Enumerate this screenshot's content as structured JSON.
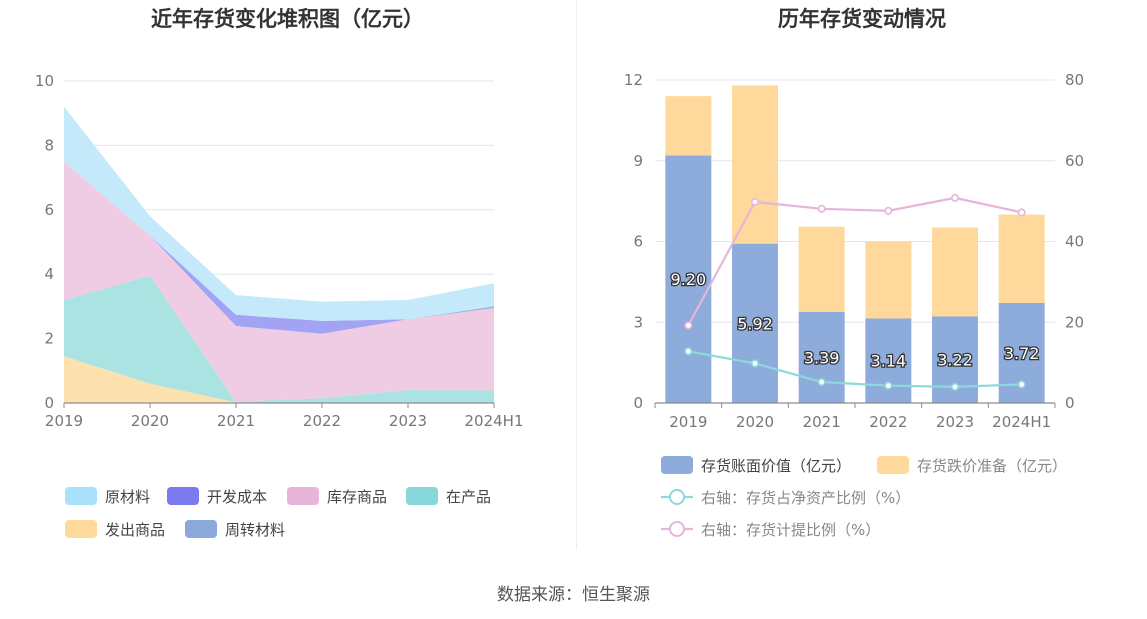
{
  "source_text": "数据来源：恒生聚源",
  "chart_data": [
    {
      "type": "area",
      "stacked": true,
      "title": "近年存货变化堆积图（亿元）",
      "categories": [
        "2019",
        "2020",
        "2021",
        "2022",
        "2023",
        "2024H1"
      ],
      "ylim": [
        0,
        10
      ],
      "yticks": [
        0,
        2,
        4,
        6,
        8,
        10
      ],
      "grid": true,
      "legend_position": "bottom",
      "series": [
        {
          "name": "发出商品",
          "color": "#fde2b0",
          "values": [
            1.45,
            0.6,
            0.02,
            0.01,
            0.01,
            0.01
          ]
        },
        {
          "name": "在产品",
          "color": "#abe3e3",
          "values": [
            1.75,
            3.35,
            0.02,
            0.14,
            0.39,
            0.38
          ]
        },
        {
          "name": "库存商品",
          "color": "#efcce4",
          "values": [
            4.3,
            1.25,
            2.35,
            2.0,
            2.2,
            2.56
          ]
        },
        {
          "name": "开发成本",
          "color": "#a3a3f3",
          "values": [
            0.0,
            0.0,
            0.35,
            0.4,
            0.0,
            0.0
          ]
        },
        {
          "name": "周转材料",
          "color": "#8fb0dc",
          "values": [
            0.0,
            0.0,
            0.0,
            0.0,
            0.0,
            0.05
          ]
        },
        {
          "name": "原材料",
          "color": "#c4e9fb",
          "values": [
            1.7,
            0.6,
            0.61,
            0.6,
            0.6,
            0.72
          ]
        }
      ],
      "legend": [
        {
          "name": "原材料",
          "color": "#a9e0fa"
        },
        {
          "name": "开发成本",
          "color": "#7b7bef"
        },
        {
          "name": "库存商品",
          "color": "#e8b5da"
        },
        {
          "name": "在产品",
          "color": "#86d7d9"
        },
        {
          "name": "发出商品",
          "color": "#fdd99a"
        },
        {
          "name": "周转材料",
          "color": "#8aa9da"
        }
      ]
    },
    {
      "type": "bar",
      "stacked": true,
      "title": "历年存货变动情况",
      "categories": [
        "2019",
        "2020",
        "2021",
        "2022",
        "2023",
        "2024H1"
      ],
      "ylim": [
        0,
        12
      ],
      "yticks": [
        0,
        3,
        6,
        9,
        12
      ],
      "y2lim": [
        0,
        80
      ],
      "y2ticks": [
        0,
        20,
        40,
        60,
        80
      ],
      "grid": true,
      "legend_position": "bottom",
      "bar_series": [
        {
          "name": "存货账面价值（亿元）",
          "color": "#8eacdb",
          "values": [
            9.2,
            5.92,
            3.39,
            3.14,
            3.22,
            3.72
          ],
          "labels": [
            "9.20",
            "5.92",
            "3.39",
            "3.14",
            "3.22",
            "3.72"
          ]
        },
        {
          "name": "存货跌价准备（亿元）",
          "color": "#fed99b",
          "values": [
            2.2,
            5.88,
            3.16,
            2.86,
            3.3,
            3.28
          ]
        }
      ],
      "line_series": [
        {
          "name": "右轴：存货占净资产比例（%）",
          "color": "#8ed8dc",
          "values": [
            12.8,
            9.8,
            5.2,
            4.3,
            4.0,
            4.6
          ]
        },
        {
          "name": "右轴：存货计提比例（%）",
          "color": "#e5b5da",
          "values": [
            19.2,
            49.8,
            48.1,
            47.6,
            50.8,
            47.2
          ]
        }
      ]
    }
  ]
}
